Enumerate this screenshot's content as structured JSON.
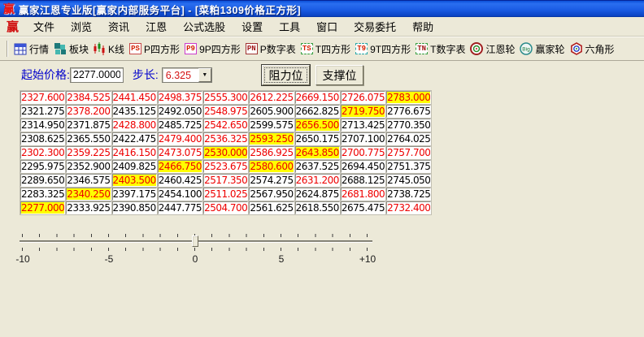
{
  "window": {
    "title": "赢家江恩专业版[赢家内部服务平台] - [菜粕1309价格正方形]",
    "app_icon_char": "赢"
  },
  "menu": {
    "logo": "赢",
    "items": [
      "文件",
      "浏览",
      "资讯",
      "江恩",
      "公式选股",
      "设置",
      "工具",
      "窗口",
      "交易委托",
      "帮助"
    ]
  },
  "toolbar": {
    "items": [
      {
        "icon": "quotes-table-icon",
        "label": "行情"
      },
      {
        "icon": "blocks-icon",
        "label": "板块"
      },
      {
        "icon": "kline-candles-icon",
        "label": "K线"
      },
      {
        "icon": "ps-badge-icon",
        "badge": "PS",
        "label": "P四方形"
      },
      {
        "icon": "p9-badge-icon",
        "badge": "P9",
        "label": "9P四方形"
      },
      {
        "icon": "pn-badge-icon",
        "badge": "PN",
        "label": "P数字表"
      },
      {
        "icon": "ts-badge-icon",
        "badge": "TS",
        "label": "T四方形"
      },
      {
        "icon": "t9-badge-icon",
        "badge": "T9",
        "label": "9T四方形"
      },
      {
        "icon": "tn-badge-icon",
        "badge": "TN",
        "label": "T数字表"
      },
      {
        "icon": "gann-wheel-icon",
        "label": "江恩轮"
      },
      {
        "icon": "winner-wheel-icon",
        "badge": "Big",
        "label": "赢家轮"
      },
      {
        "icon": "hexagon-icon",
        "label": "六角形"
      }
    ]
  },
  "controls": {
    "start_price_label": "起始价格:",
    "start_price_value": "2277.0000",
    "step_label": "步长:",
    "step_value": "6.325",
    "dropdown_arrow": "▼",
    "resistance_button": "阻力位",
    "support_button": "支撑位"
  },
  "grid": {
    "rows": 9,
    "cols": 9,
    "values": [
      [
        "2327.600",
        "2384.525",
        "2441.450",
        "2498.375",
        "2555.300",
        "2612.225",
        "2669.150",
        "2726.075",
        "2783.000"
      ],
      [
        "2321.275",
        "2378.200",
        "2435.125",
        "2492.050",
        "2548.975",
        "2605.900",
        "2662.825",
        "2719.750",
        "2776.675"
      ],
      [
        "2314.950",
        "2371.875",
        "2428.800",
        "2485.725",
        "2542.650",
        "2599.575",
        "2656.500",
        "2713.425",
        "2770.350"
      ],
      [
        "2308.625",
        "2365.550",
        "2422.475",
        "2479.400",
        "2536.325",
        "2593.250",
        "2650.175",
        "2707.100",
        "2764.025"
      ],
      [
        "2302.300",
        "2359.225",
        "2416.150",
        "2473.075",
        "2530.000",
        "2586.925",
        "2643.850",
        "2700.775",
        "2757.700"
      ],
      [
        "2295.975",
        "2352.900",
        "2409.825",
        "2466.750",
        "2523.675",
        "2580.600",
        "2637.525",
        "2694.450",
        "2751.375"
      ],
      [
        "2289.650",
        "2346.575",
        "2403.500",
        "2460.425",
        "2517.350",
        "2574.275",
        "2631.200",
        "2688.125",
        "2745.050"
      ],
      [
        "2283.325",
        "2340.250",
        "2397.175",
        "2454.100",
        "2511.025",
        "2567.950",
        "2624.875",
        "2681.800",
        "2738.725"
      ],
      [
        "2277.000",
        "2333.925",
        "2390.850",
        "2447.775",
        "2504.700",
        "2561.625",
        "2618.550",
        "2675.475",
        "2732.400"
      ]
    ],
    "red_cells": [
      [
        1,
        1
      ],
      [
        1,
        2
      ],
      [
        1,
        3
      ],
      [
        1,
        4
      ],
      [
        1,
        5
      ],
      [
        1,
        6
      ],
      [
        1,
        7
      ],
      [
        1,
        8
      ],
      [
        1,
        9
      ],
      [
        5,
        1
      ],
      [
        5,
        2
      ],
      [
        5,
        3
      ],
      [
        5,
        4
      ],
      [
        5,
        5
      ],
      [
        5,
        6
      ],
      [
        5,
        7
      ],
      [
        5,
        8
      ],
      [
        5,
        9
      ],
      [
        2,
        5
      ],
      [
        3,
        5
      ],
      [
        4,
        5
      ],
      [
        6,
        5
      ],
      [
        7,
        5
      ],
      [
        8,
        5
      ],
      [
        9,
        5
      ],
      [
        2,
        2
      ],
      [
        3,
        3
      ],
      [
        4,
        4
      ],
      [
        6,
        6
      ],
      [
        7,
        7
      ],
      [
        8,
        8
      ],
      [
        9,
        9
      ],
      [
        2,
        8
      ],
      [
        3,
        7
      ],
      [
        4,
        6
      ],
      [
        6,
        4
      ],
      [
        7,
        3
      ],
      [
        8,
        2
      ],
      [
        9,
        1
      ]
    ],
    "yellow_cells": [
      [
        1,
        9
      ],
      [
        2,
        8
      ],
      [
        3,
        7
      ],
      [
        4,
        6
      ],
      [
        5,
        5
      ],
      [
        5,
        7
      ],
      [
        6,
        4
      ],
      [
        6,
        6
      ],
      [
        7,
        3
      ],
      [
        8,
        2
      ],
      [
        9,
        1
      ]
    ]
  },
  "slider": {
    "labels": [
      "-10",
      "-5",
      "0",
      "5",
      "+10"
    ],
    "value": "0",
    "tick_count": 21
  },
  "colors": {
    "titlebar_blue": "#1a5ce4",
    "panel_beige": "#ece9d8",
    "highlight_yellow": "#ffff00",
    "price_red": "#ee0000",
    "label_blue": "#0000cc"
  }
}
